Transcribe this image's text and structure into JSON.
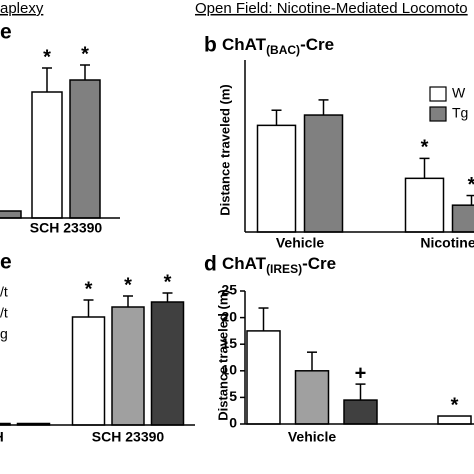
{
  "chart_data": [
    {
      "type": "bar",
      "header": "aplexy",
      "panel_label": "e",
      "categories": [
        null,
        "SCH 23390"
      ],
      "series": [
        {
          "name": null,
          "color": "#ffffff",
          "values": [
            null,
            126
          ],
          "errors": [
            null,
            24
          ],
          "annotations": [
            null,
            "*"
          ]
        },
        {
          "name": null,
          "color": "#808080",
          "values": [
            7,
            138
          ],
          "errors": [
            null,
            15
          ],
          "annotations": [
            null,
            "*"
          ]
        }
      ],
      "ylim": [
        0,
        160
      ]
    },
    {
      "type": "bar",
      "header": "Open Field: Nicotine-Mediated Locomoto",
      "panel_label": "b",
      "title": "ChAT",
      "title_sub": "(BAC)",
      "title_suffix": "-Cre",
      "y_label": "Distance traveled (m)",
      "categories": [
        "Vehicle",
        "Nicotine"
      ],
      "series": [
        {
          "name": "W",
          "color": "#ffffff",
          "values": [
            15.5,
            7.8
          ],
          "errors": [
            2.2,
            2.9
          ],
          "annotations": [
            null,
            "*"
          ]
        },
        {
          "name": "Tg",
          "color": "#808080",
          "values": [
            17,
            3.9
          ],
          "errors": [
            2.2,
            1.4
          ],
          "annotations": [
            null,
            "*"
          ]
        }
      ],
      "ylim": [
        0,
        25
      ]
    },
    {
      "type": "bar",
      "panel_label": "e",
      "categories": [
        "EH",
        "SCH 23390"
      ],
      "series": [
        {
          "name": "/t",
          "color": "#ffffff",
          "values": [
            null,
            108
          ],
          "errors": [
            null,
            17
          ],
          "annotations": [
            null,
            "*"
          ]
        },
        {
          "name": "/t",
          "color": "#a0a0a0",
          "values": [
            1.5,
            118
          ],
          "errors": [
            null,
            11
          ],
          "annotations": [
            null,
            "*"
          ]
        },
        {
          "name": "g",
          "color": "#404040",
          "values": [
            1.5,
            123
          ],
          "errors": [
            null,
            9
          ],
          "annotations": [
            null,
            "*"
          ]
        }
      ],
      "ylim": [
        0,
        160
      ]
    },
    {
      "type": "bar",
      "panel_label": "d",
      "title": "ChAT",
      "title_sub": "(IRES)",
      "title_suffix": "-Cre",
      "y_label": "Distance traveled (m)",
      "categories": [
        "Vehicle",
        null
      ],
      "series": [
        {
          "name": null,
          "color": "#ffffff",
          "values": [
            17.5,
            1.5
          ],
          "errors": [
            4.3,
            null
          ],
          "annotations": [
            null,
            "*"
          ]
        },
        {
          "name": null,
          "color": "#a0a0a0",
          "values": [
            10,
            null
          ],
          "errors": [
            3.5,
            null
          ],
          "annotations": [
            null,
            null
          ]
        },
        {
          "name": null,
          "color": "#404040",
          "values": [
            4.5,
            null
          ],
          "errors": [
            3,
            null
          ],
          "annotations": [
            "+",
            null
          ]
        }
      ],
      "ylim": [
        0,
        25
      ],
      "yticks": [
        0,
        5,
        10,
        15,
        20,
        25
      ]
    }
  ]
}
